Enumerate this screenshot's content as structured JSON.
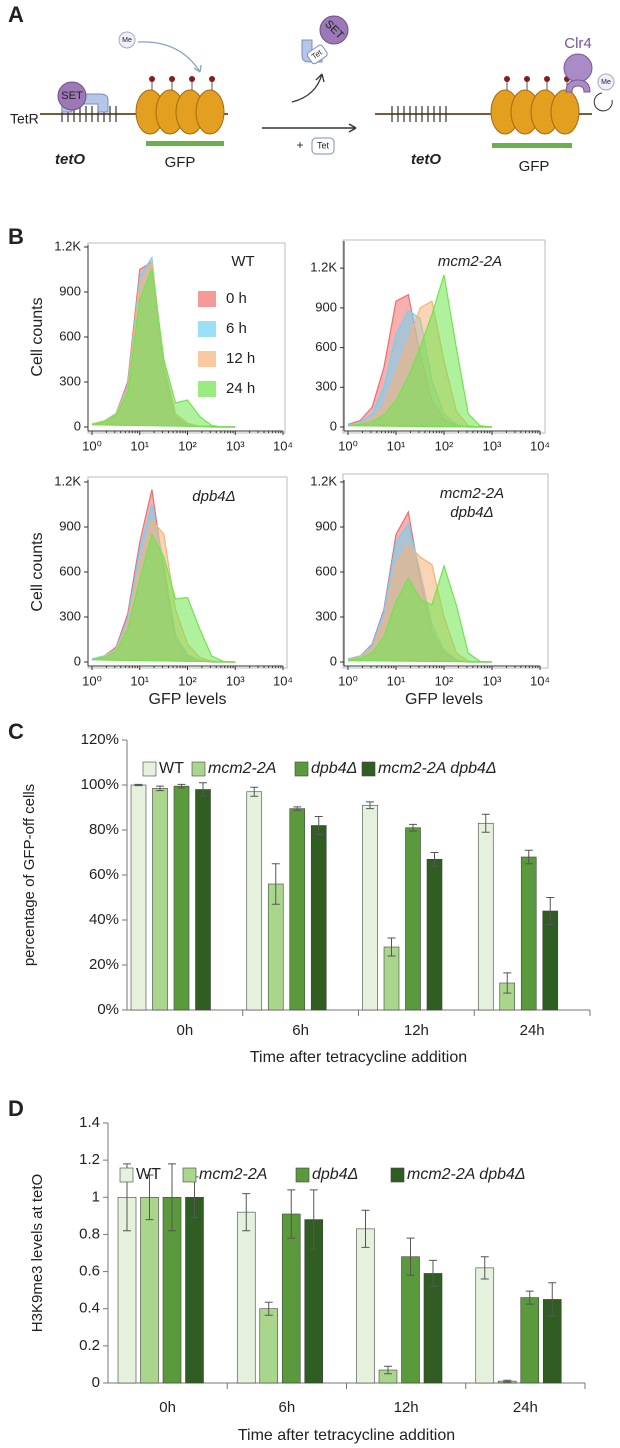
{
  "panel_labels": [
    "A",
    "B",
    "C",
    "D"
  ],
  "diagram": {
    "left": {
      "me": "Me",
      "set": "SET",
      "tetr": "TetR",
      "teto": "tetO",
      "gfp": "GFP"
    },
    "middle": {
      "set": "SET",
      "tet_bound": "Tet",
      "plus": "+",
      "tet": "Tet"
    },
    "right": {
      "teto": "tetO",
      "gfp": "GFP",
      "clr4": "Clr4",
      "me": "Me"
    }
  },
  "chart_data": [
    {
      "type": "area",
      "title": [
        "WT"
      ],
      "ylabel": "Cell counts",
      "xscale": "log",
      "legend": true,
      "x": [
        1,
        1.8,
        3.2,
        5.6,
        10,
        18,
        32,
        56,
        100,
        180,
        320,
        560,
        1000
      ],
      "xlim": [
        1,
        10000
      ],
      "xticks": [
        {
          "value": 1,
          "label": "10⁰"
        },
        {
          "value": 10,
          "label": "10¹"
        },
        {
          "value": 100,
          "label": "10²"
        },
        {
          "value": 1000,
          "label": "10³"
        },
        {
          "value": 10000,
          "label": "10⁴"
        }
      ],
      "ylim": [
        0,
        1200
      ],
      "yticks": [
        0,
        300,
        600,
        900,
        {
          "value": 1200,
          "label": "1.2K"
        }
      ],
      "series": [
        {
          "name": "0 h",
          "color": "#f26d6d",
          "values": [
            20,
            40,
            90,
            300,
            1050,
            1100,
            350,
            60,
            15,
            5,
            0,
            0,
            0
          ]
        },
        {
          "name": "6 h",
          "color": "#6fd3f2",
          "values": [
            20,
            40,
            90,
            280,
            1000,
            1130,
            380,
            70,
            15,
            5,
            0,
            0,
            0
          ]
        },
        {
          "name": "12 h",
          "color": "#f6b278",
          "values": [
            20,
            40,
            85,
            260,
            950,
            1100,
            420,
            90,
            25,
            5,
            0,
            0,
            0
          ]
        },
        {
          "name": "24 h",
          "color": "#6ee64a",
          "values": [
            15,
            35,
            80,
            230,
            850,
            1050,
            450,
            160,
            180,
            70,
            10,
            0,
            0
          ]
        }
      ]
    },
    {
      "type": "area",
      "title": [
        "mcm2-2A"
      ],
      "xscale": "log",
      "x": [
        1,
        1.8,
        3.2,
        5.6,
        10,
        18,
        32,
        56,
        100,
        180,
        320,
        560,
        1000
      ],
      "xlim": [
        1,
        10000
      ],
      "xticks": [
        {
          "value": 1,
          "label": "10⁰"
        },
        {
          "value": 10,
          "label": "10¹"
        },
        {
          "value": 100,
          "label": "10²"
        },
        {
          "value": 1000,
          "label": "10³"
        },
        {
          "value": 10000,
          "label": "10⁴"
        }
      ],
      "ylim": [
        0,
        1390
      ],
      "yticks": [
        0,
        300,
        600,
        900,
        {
          "value": 1200,
          "label": "1.2K"
        }
      ],
      "series": [
        {
          "color": "#f26d6d",
          "values": [
            20,
            50,
            150,
            450,
            950,
            1000,
            550,
            200,
            60,
            10,
            0,
            0,
            0
          ]
        },
        {
          "color": "#6fd3f2",
          "values": [
            15,
            35,
            100,
            300,
            700,
            880,
            820,
            350,
            100,
            20,
            0,
            0,
            0
          ]
        },
        {
          "color": "#f6b278",
          "values": [
            10,
            25,
            60,
            160,
            400,
            650,
            900,
            950,
            500,
            120,
            10,
            0,
            0
          ]
        },
        {
          "color": "#6ee64a",
          "values": [
            10,
            20,
            40,
            90,
            200,
            380,
            600,
            850,
            1150,
            600,
            100,
            10,
            0
          ]
        }
      ]
    },
    {
      "type": "area",
      "title": [
        "dpb4Δ"
      ],
      "ylabel": "Cell counts",
      "xlabel": "GFP levels",
      "xscale": "log",
      "x": [
        1,
        1.8,
        3.2,
        5.6,
        10,
        18,
        32,
        56,
        100,
        180,
        320,
        560,
        1000
      ],
      "xlim": [
        1,
        10000
      ],
      "xticks": [
        {
          "value": 1,
          "label": "10⁰"
        },
        {
          "value": 10,
          "label": "10¹"
        },
        {
          "value": 100,
          "label": "10²"
        },
        {
          "value": 1000,
          "label": "10³"
        },
        {
          "value": 10000,
          "label": "10⁴"
        }
      ],
      "ylim": [
        0,
        1200
      ],
      "yticks": [
        0,
        300,
        600,
        900,
        {
          "value": 1200,
          "label": "1.2K"
        }
      ],
      "series": [
        {
          "color": "#f26d6d",
          "values": [
            20,
            40,
            100,
            320,
            800,
            1150,
            600,
            150,
            40,
            10,
            0,
            0,
            0
          ]
        },
        {
          "color": "#6fd3f2",
          "values": [
            20,
            40,
            90,
            290,
            750,
            1050,
            650,
            180,
            50,
            10,
            0,
            0,
            0
          ]
        },
        {
          "color": "#f6b278",
          "values": [
            15,
            35,
            80,
            250,
            650,
            950,
            850,
            350,
            120,
            30,
            5,
            0,
            0
          ]
        },
        {
          "color": "#6ee64a",
          "values": [
            15,
            30,
            70,
            220,
            550,
            850,
            700,
            420,
            430,
            220,
            40,
            5,
            0
          ]
        }
      ]
    },
    {
      "type": "area",
      "title": [
        "mcm2-2A",
        "dpb4Δ"
      ],
      "xlabel": "GFP levels",
      "xscale": "log",
      "x": [
        1,
        1.8,
        3.2,
        5.6,
        10,
        18,
        32,
        56,
        100,
        180,
        320,
        560,
        1000
      ],
      "xlim": [
        1,
        10000
      ],
      "xticks": [
        {
          "value": 1,
          "label": "10⁰"
        },
        {
          "value": 10,
          "label": "10¹"
        },
        {
          "value": 100,
          "label": "10²"
        },
        {
          "value": 1000,
          "label": "10³"
        },
        {
          "value": 10000,
          "label": "10⁴"
        }
      ],
      "ylim": [
        0,
        1200
      ],
      "yticks": [
        0,
        300,
        600,
        900,
        {
          "value": 1200,
          "label": "1.2K"
        }
      ],
      "series": [
        {
          "color": "#f26d6d",
          "values": [
            20,
            40,
            120,
            350,
            850,
            1000,
            550,
            200,
            60,
            10,
            0,
            0,
            0
          ]
        },
        {
          "color": "#6fd3f2",
          "values": [
            20,
            40,
            110,
            330,
            800,
            920,
            600,
            250,
            80,
            15,
            0,
            0,
            0
          ]
        },
        {
          "color": "#f6b278",
          "values": [
            15,
            35,
            90,
            270,
            650,
            780,
            700,
            650,
            300,
            60,
            5,
            0,
            0
          ]
        },
        {
          "color": "#6ee64a",
          "values": [
            10,
            25,
            60,
            170,
            400,
            560,
            420,
            380,
            640,
            380,
            60,
            5,
            0
          ]
        }
      ]
    },
    {
      "type": "bar",
      "ylabel": "percentage of GFP-off cells",
      "xlabel": "Time after tetracycline addition",
      "categories": [
        "0h",
        "6h",
        "12h",
        "24h"
      ],
      "ylim": [
        0,
        120
      ],
      "yticks": [
        {
          "value": 0,
          "label": "0%"
        },
        {
          "value": 20,
          "label": "20%"
        },
        {
          "value": 40,
          "label": "40%"
        },
        {
          "value": 60,
          "label": "60%"
        },
        {
          "value": 80,
          "label": "80%"
        },
        {
          "value": 100,
          "label": "100%"
        },
        {
          "value": 120,
          "label": "120%"
        }
      ],
      "series": [
        {
          "name": "WT",
          "color": "#e5f1dc",
          "values": [
            100,
            97,
            91,
            83
          ],
          "errors": [
            0.3,
            2,
            1.5,
            4
          ]
        },
        {
          "name": "mcm2-2A",
          "color": "#a9d68c",
          "values": [
            98.5,
            56,
            28,
            12
          ],
          "errors": [
            1,
            9,
            4,
            4.5
          ]
        },
        {
          "name": "dpb4Δ",
          "color": "#5b9a3c",
          "values": [
            99.5,
            89.5,
            81,
            68
          ],
          "errors": [
            0.8,
            0.8,
            1.5,
            3
          ]
        },
        {
          "name": "mcm2-2A dpb4Δ",
          "color": "#2f5d22",
          "values": [
            98,
            82,
            67,
            44
          ],
          "errors": [
            3,
            4,
            3,
            6
          ]
        }
      ]
    },
    {
      "type": "bar",
      "ylabel": "H3K9me3 levels at tetO",
      "xlabel": "Time after tetracycline addition",
      "categories": [
        "0h",
        "6h",
        "12h",
        "24h"
      ],
      "ylim": [
        0,
        1.4
      ],
      "yticks": [
        0,
        0.2,
        0.4,
        0.6,
        0.8,
        1,
        1.2,
        1.4
      ],
      "series": [
        {
          "name": "WT",
          "color": "#e5f1dc",
          "values": [
            1,
            0.92,
            0.83,
            0.62
          ],
          "errors": [
            0.18,
            0.1,
            0.1,
            0.06
          ]
        },
        {
          "name": "mcm2-2A",
          "color": "#a9d68c",
          "values": [
            1,
            0.4,
            0.07,
            0.01
          ],
          "errors": [
            0.12,
            0.035,
            0.02,
            0.005
          ]
        },
        {
          "name": "dpb4Δ",
          "color": "#5b9a3c",
          "values": [
            1,
            0.91,
            0.68,
            0.46
          ],
          "errors": [
            0.18,
            0.13,
            0.1,
            0.035
          ]
        },
        {
          "name": "mcm2-2A dpb4Δ",
          "color": "#2f5d22",
          "values": [
            1,
            0.88,
            0.59,
            0.45
          ],
          "errors": [
            0.11,
            0.16,
            0.07,
            0.09
          ]
        }
      ]
    }
  ]
}
